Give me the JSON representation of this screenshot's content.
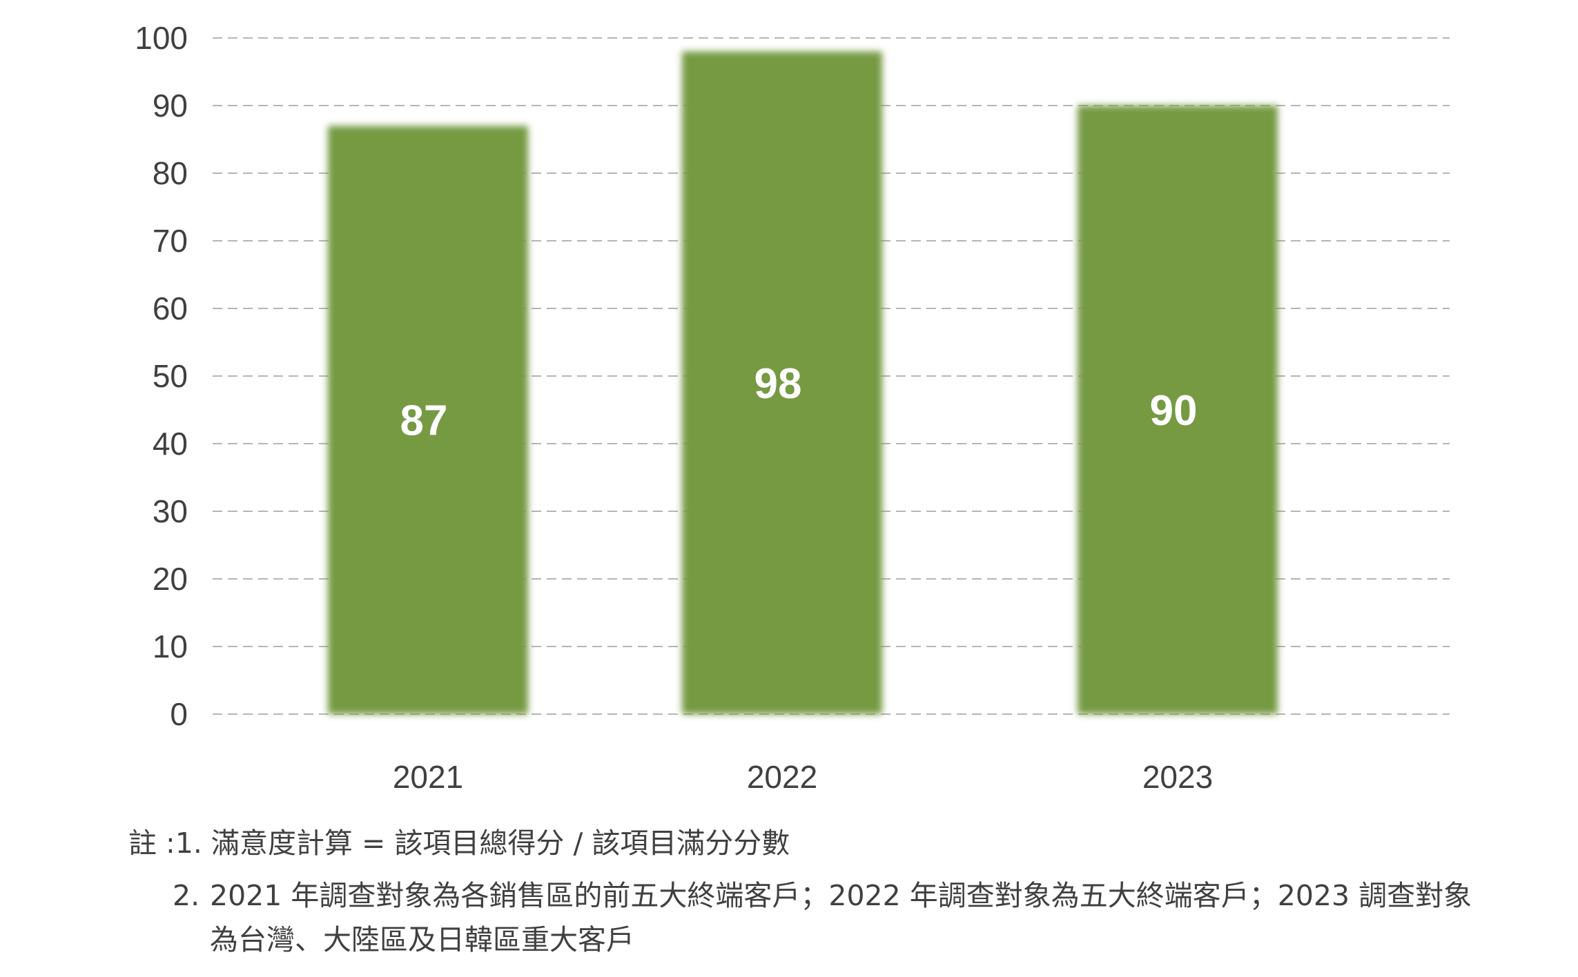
{
  "chart_data": {
    "type": "bar",
    "categories": [
      "2021",
      "2022",
      "2023"
    ],
    "values": [
      87,
      98,
      90
    ],
    "data_labels": [
      "87",
      "98",
      "90"
    ],
    "ylim": [
      0,
      100
    ],
    "yticks": [
      "0",
      "10",
      "20",
      "30",
      "40",
      "50",
      "60",
      "70",
      "80",
      "90",
      "100"
    ],
    "title": "",
    "xlabel": "",
    "ylabel": "",
    "grid": "dashed horizontal",
    "legend": "none",
    "bar_color": "#759a43",
    "grid_color": "#b5b5b5"
  },
  "notes": {
    "line1": "註 :1. 滿意度計算 = 該項目總得分 / 該項目滿分分數",
    "line2_num": "2.",
    "line2_text": "2021 年調查對象為各銷售區的前五大終端客戶；2022 年調查對象為五大終端客戶；2023 調查對象為台灣、大陸區及日韓區重大客戶"
  }
}
